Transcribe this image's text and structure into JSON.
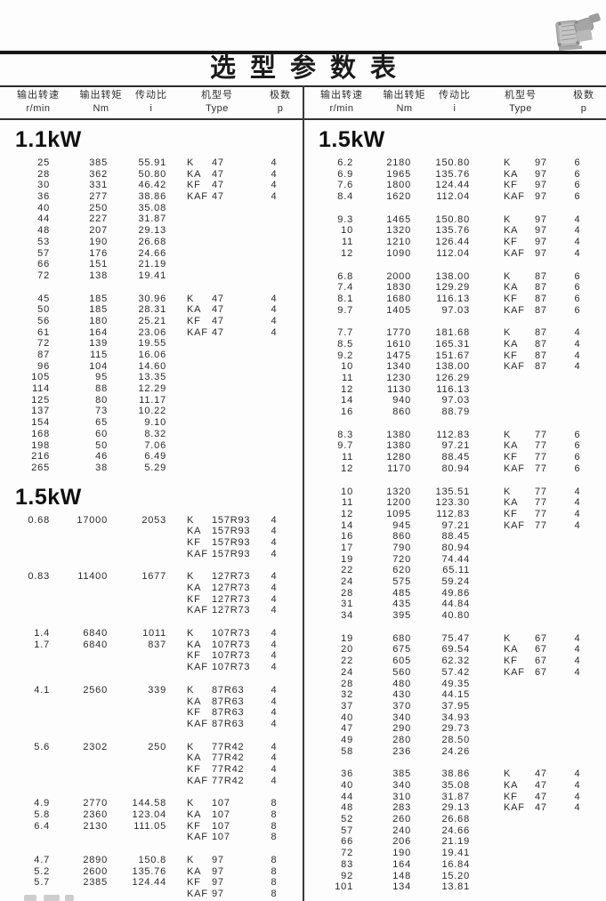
{
  "page": {
    "title": "选型参数表",
    "colors": {
      "paper": "#fdfdfd",
      "ink": "#1b1b1b",
      "line": "#2b2b2b"
    }
  },
  "table_headers": [
    {
      "label": "输出转速",
      "unit": "r/min"
    },
    {
      "label": "输出转矩",
      "unit": "Nm"
    },
    {
      "label": "传动比",
      "unit": "i"
    },
    {
      "label": "机型号",
      "unit": "Type"
    },
    {
      "label": "极数",
      "unit": "p"
    }
  ],
  "left_column": {
    "sections": [
      {
        "heading": "1.1kW",
        "groups": [
          [
            [
              "25",
              "385",
              "55.91",
              "K",
              "47",
              "4"
            ],
            [
              "28",
              "362",
              "50.80",
              "KA",
              "47",
              "4"
            ],
            [
              "30",
              "331",
              "46.42",
              "KF",
              "47",
              "4"
            ],
            [
              "36",
              "277",
              "38.86",
              "KAF",
              "47",
              "4"
            ],
            [
              "40",
              "250",
              "35.08",
              "",
              "",
              ""
            ],
            [
              "44",
              "227",
              "31.87",
              "",
              "",
              ""
            ],
            [
              "48",
              "207",
              "29.13",
              "",
              "",
              ""
            ],
            [
              "53",
              "190",
              "26.68",
              "",
              "",
              ""
            ],
            [
              "57",
              "176",
              "24.66",
              "",
              "",
              ""
            ],
            [
              "66",
              "151",
              "21.19",
              "",
              "",
              ""
            ],
            [
              "72",
              "138",
              "19.41",
              "",
              "",
              ""
            ]
          ],
          [
            [
              "45",
              "185",
              "30.96",
              "K",
              "47",
              "4"
            ],
            [
              "50",
              "185",
              "28.31",
              "KA",
              "47",
              "4"
            ],
            [
              "56",
              "180",
              "25.21",
              "KF",
              "47",
              "4"
            ],
            [
              "61",
              "164",
              "23.06",
              "KAF",
              "47",
              "4"
            ],
            [
              "72",
              "139",
              "19.55",
              "",
              "",
              ""
            ],
            [
              "87",
              "115",
              "16.06",
              "",
              "",
              ""
            ],
            [
              "96",
              "104",
              "14.60",
              "",
              "",
              ""
            ],
            [
              "105",
              "95",
              "13.35",
              "",
              "",
              ""
            ],
            [
              "114",
              "88",
              "12.29",
              "",
              "",
              ""
            ],
            [
              "125",
              "80",
              "11.17",
              "",
              "",
              ""
            ],
            [
              "137",
              "73",
              "10.22",
              "",
              "",
              ""
            ],
            [
              "154",
              "65",
              "9.10",
              "",
              "",
              ""
            ],
            [
              "168",
              "60",
              "8.32",
              "",
              "",
              ""
            ],
            [
              "198",
              "50",
              "7.06",
              "",
              "",
              ""
            ],
            [
              "216",
              "46",
              "6.49",
              "",
              "",
              ""
            ],
            [
              "265",
              "38",
              "5.29",
              "",
              "",
              ""
            ]
          ]
        ]
      },
      {
        "heading": "1.5kW",
        "groups": [
          [
            [
              "0.68",
              "17000",
              "2053",
              "K",
              "157R93",
              "4"
            ],
            [
              "",
              "",
              "",
              "KA",
              "157R93",
              "4"
            ],
            [
              "",
              "",
              "",
              "KF",
              "157R93",
              "4"
            ],
            [
              "",
              "",
              "",
              "KAF",
              "157R93",
              "4"
            ]
          ],
          [
            [
              "0.83",
              "11400",
              "1677",
              "K",
              "127R73",
              "4"
            ],
            [
              "",
              "",
              "",
              "KA",
              "127R73",
              "4"
            ],
            [
              "",
              "",
              "",
              "KF",
              "127R73",
              "4"
            ],
            [
              "",
              "",
              "",
              "KAF",
              "127R73",
              "4"
            ]
          ],
          [
            [
              "1.4",
              "6840",
              "1011",
              "K",
              "107R73",
              "4"
            ],
            [
              "1.7",
              "6840",
              "837",
              "KA",
              "107R73",
              "4"
            ],
            [
              "",
              "",
              "",
              "KF",
              "107R73",
              "4"
            ],
            [
              "",
              "",
              "",
              "KAF",
              "107R73",
              "4"
            ]
          ],
          [
            [
              "4.1",
              "2560",
              "339",
              "K",
              "87R63",
              "4"
            ],
            [
              "",
              "",
              "",
              "KA",
              "87R63",
              "4"
            ],
            [
              "",
              "",
              "",
              "KF",
              "87R63",
              "4"
            ],
            [
              "",
              "",
              "",
              "KAF",
              "87R63",
              "4"
            ]
          ],
          [
            [
              "5.6",
              "2302",
              "250",
              "K",
              "77R42",
              "4"
            ],
            [
              "",
              "",
              "",
              "KA",
              "77R42",
              "4"
            ],
            [
              "",
              "",
              "",
              "KF",
              "77R42",
              "4"
            ],
            [
              "",
              "",
              "",
              "KAF",
              "77R42",
              "4"
            ]
          ],
          [
            [
              "4.9",
              "2770",
              "144.58",
              "K",
              "107",
              "8"
            ],
            [
              "5.8",
              "2360",
              "123.04",
              "KA",
              "107",
              "8"
            ],
            [
              "6.4",
              "2130",
              "111.05",
              "KF",
              "107",
              "8"
            ],
            [
              "",
              "",
              "",
              "KAF",
              "107",
              "8"
            ]
          ],
          [
            [
              "4.7",
              "2890",
              "150.8",
              "K",
              "97",
              "8"
            ],
            [
              "5.2",
              "2600",
              "135.76",
              "KA",
              "97",
              "8"
            ],
            [
              "5.7",
              "2385",
              "124.44",
              "KF",
              "97",
              "8"
            ],
            [
              "",
              "",
              "",
              "KAF",
              "97",
              "8"
            ]
          ]
        ]
      }
    ]
  },
  "right_column": {
    "sections": [
      {
        "heading": "1.5kW",
        "groups": [
          [
            [
              "6.2",
              "2180",
              "150.80",
              "K",
              "97",
              "6"
            ],
            [
              "6.9",
              "1965",
              "135.76",
              "KA",
              "97",
              "6"
            ],
            [
              "7.6",
              "1800",
              "124.44",
              "KF",
              "97",
              "6"
            ],
            [
              "8.4",
              "1620",
              "112.04",
              "KAF",
              "97",
              "6"
            ]
          ],
          [
            [
              "9.3",
              "1465",
              "150.80",
              "K",
              "97",
              "4"
            ],
            [
              "10",
              "1320",
              "135.76",
              "KA",
              "97",
              "4"
            ],
            [
              "11",
              "1210",
              "126.44",
              "KF",
              "97",
              "4"
            ],
            [
              "12",
              "1090",
              "112.04",
              "KAF",
              "97",
              "4"
            ]
          ],
          [
            [
              "6.8",
              "2000",
              "138.00",
              "K",
              "87",
              "6"
            ],
            [
              "7.4",
              "1830",
              "129.29",
              "KA",
              "87",
              "6"
            ],
            [
              "8.1",
              "1680",
              "116.13",
              "KF",
              "87",
              "6"
            ],
            [
              "9.7",
              "1405",
              "97.03",
              "KAF",
              "87",
              "6"
            ]
          ],
          [
            [
              "7.7",
              "1770",
              "181.68",
              "K",
              "87",
              "4"
            ],
            [
              "8.5",
              "1610",
              "165.31",
              "KA",
              "87",
              "4"
            ],
            [
              "9.2",
              "1475",
              "151.67",
              "KF",
              "87",
              "4"
            ],
            [
              "10",
              "1340",
              "138.00",
              "KAF",
              "87",
              "4"
            ],
            [
              "11",
              "1230",
              "126.29",
              "",
              "",
              ""
            ],
            [
              "12",
              "1130",
              "116.13",
              "",
              "",
              ""
            ],
            [
              "14",
              "940",
              "97.03",
              "",
              "",
              ""
            ],
            [
              "16",
              "860",
              "88.79",
              "",
              "",
              ""
            ]
          ],
          [
            [
              "8.3",
              "1380",
              "112.83",
              "K",
              "77",
              "6"
            ],
            [
              "9.7",
              "1380",
              "97.21",
              "KA",
              "77",
              "6"
            ],
            [
              "11",
              "1280",
              "88.45",
              "KF",
              "77",
              "6"
            ],
            [
              "12",
              "1170",
              "80.94",
              "KAF",
              "77",
              "6"
            ]
          ],
          [
            [
              "10",
              "1320",
              "135.51",
              "K",
              "77",
              "4"
            ],
            [
              "11",
              "1200",
              "123.30",
              "KA",
              "77",
              "4"
            ],
            [
              "12",
              "1095",
              "112.83",
              "KF",
              "77",
              "4"
            ],
            [
              "14",
              "945",
              "97.21",
              "KAF",
              "77",
              "4"
            ],
            [
              "16",
              "860",
              "88.45",
              "",
              "",
              ""
            ],
            [
              "17",
              "790",
              "80.94",
              "",
              "",
              ""
            ],
            [
              "19",
              "720",
              "74.44",
              "",
              "",
              ""
            ],
            [
              "22",
              "620",
              "65.11",
              "",
              "",
              ""
            ],
            [
              "24",
              "575",
              "59.24",
              "",
              "",
              ""
            ],
            [
              "28",
              "485",
              "49.86",
              "",
              "",
              ""
            ],
            [
              "31",
              "435",
              "44.84",
              "",
              "",
              ""
            ],
            [
              "34",
              "395",
              "40.80",
              "",
              "",
              ""
            ]
          ],
          [
            [
              "19",
              "680",
              "75.47",
              "K",
              "67",
              "4"
            ],
            [
              "20",
              "675",
              "69.54",
              "KA",
              "67",
              "4"
            ],
            [
              "22",
              "605",
              "62.32",
              "KF",
              "67",
              "4"
            ],
            [
              "24",
              "560",
              "57.42",
              "KAF",
              "67",
              "4"
            ],
            [
              "28",
              "480",
              "49.35",
              "",
              "",
              ""
            ],
            [
              "32",
              "430",
              "44.15",
              "",
              "",
              ""
            ],
            [
              "37",
              "370",
              "37.95",
              "",
              "",
              ""
            ],
            [
              "40",
              "340",
              "34.93",
              "",
              "",
              ""
            ],
            [
              "47",
              "290",
              "29.73",
              "",
              "",
              ""
            ],
            [
              "49",
              "280",
              "28.50",
              "",
              "",
              ""
            ],
            [
              "58",
              "236",
              "24.26",
              "",
              "",
              ""
            ]
          ],
          [
            [
              "36",
              "385",
              "38.86",
              "K",
              "47",
              "4"
            ],
            [
              "40",
              "340",
              "35.08",
              "KA",
              "47",
              "4"
            ],
            [
              "44",
              "310",
              "31.87",
              "KF",
              "47",
              "4"
            ],
            [
              "48",
              "283",
              "29.13",
              "KAF",
              "47",
              "4"
            ],
            [
              "52",
              "260",
              "26.68",
              "",
              "",
              ""
            ],
            [
              "57",
              "240",
              "24.66",
              "",
              "",
              ""
            ],
            [
              "66",
              "206",
              "21.19",
              "",
              "",
              ""
            ],
            [
              "72",
              "190",
              "19.41",
              "",
              "",
              ""
            ],
            [
              "83",
              "164",
              "16.84",
              "",
              "",
              ""
            ],
            [
              "92",
              "148",
              "15.20",
              "",
              "",
              ""
            ],
            [
              "101",
              "134",
              "13.81",
              "",
              "",
              ""
            ]
          ]
        ]
      }
    ]
  }
}
